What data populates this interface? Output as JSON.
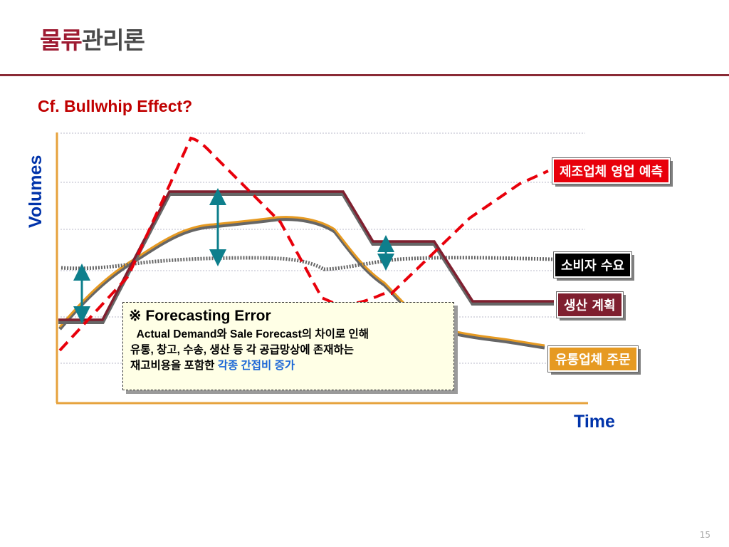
{
  "header": {
    "title_accent": "물류",
    "title_rest": "관리론",
    "subtitle": "Cf. Bullwhip Effect?"
  },
  "diagram": {
    "y_axis_label": "Volumes",
    "x_axis_label": "Time",
    "series_labels": {
      "forecast": "제조업체 영업 예측",
      "consumer": "소비자 수요",
      "production": "생산 계획",
      "distributor": "유통업체 주문"
    },
    "colors": {
      "forecast": "#e8000b",
      "consumer": "#555555",
      "production": "#7f1f2f",
      "distributor": "#e69a22",
      "arrow": "#0e7f8c",
      "axis": "#e6a23c"
    }
  },
  "callout": {
    "heading": "※ Forecasting Error",
    "line1_bold": "Actual Demand",
    "line1_rest": "와 Sale Forecast의 차이로 인해",
    "line2": "유통, 창고, 수송, 생산 등 각 공급망상에 존재하는",
    "line3_plain": "재고비용을 포함한 ",
    "line3_highlight": "각종 간접비 증가"
  },
  "page_number": "15"
}
